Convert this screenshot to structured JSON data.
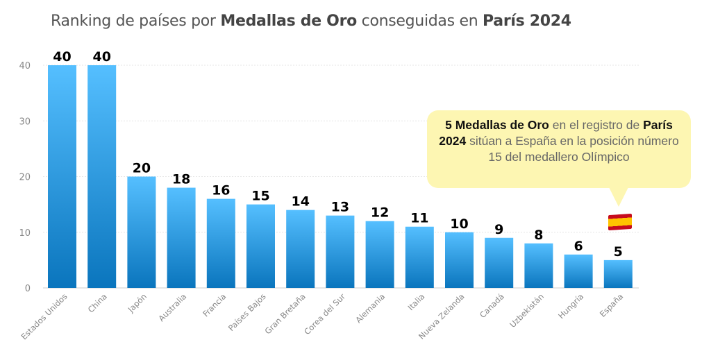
{
  "title": {
    "pre": "Ranking de países por ",
    "bold1": "Medallas de Oro",
    "mid": " conseguidas en ",
    "bold2": "París 2024"
  },
  "chart_data": {
    "type": "bar",
    "categories": [
      "Estados Unidos",
      "China",
      "Japón",
      "Australia",
      "Francia",
      "Países Bajos",
      "Gran Bretaña",
      "Corea del Sur",
      "Alemania",
      "Italia",
      "Nueva Zelanda",
      "Canadá",
      "Uzbekistán",
      "Hungría",
      "España"
    ],
    "values": [
      40,
      40,
      20,
      18,
      16,
      15,
      14,
      13,
      12,
      11,
      10,
      9,
      8,
      6,
      5
    ],
    "ylim": [
      0,
      40
    ],
    "yticks": [
      0,
      10,
      20,
      30,
      40
    ],
    "grid": true,
    "bar_color_top": "#55bfff",
    "bar_color_bottom": "#0a75bd"
  },
  "annotation": {
    "bold1": "5 Medallas de Oro",
    "t1": " en el registro de ",
    "bold2": "París 2024",
    "t2": " sitúan a España en la posición número 15 del medallero Olímpico",
    "icon": "spain-flag-icon"
  }
}
